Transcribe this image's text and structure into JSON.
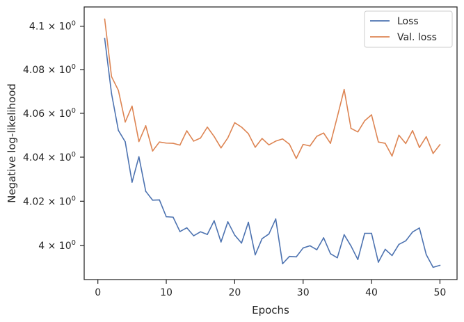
{
  "chart_data": {
    "type": "line",
    "title": "",
    "xlabel": "Epochs",
    "ylabel": "Negative log-likelihood",
    "yscale": "log",
    "xlim": [
      -2,
      52.5
    ],
    "ylim": [
      3.9847,
      4.1089
    ],
    "x_ticks": [
      0,
      10,
      20,
      30,
      40,
      50
    ],
    "y_ticks": [
      {
        "value": 4.0,
        "label": "4 × 10^0"
      },
      {
        "value": 4.02,
        "label": "4.02 × 10^0"
      },
      {
        "value": 4.04,
        "label": "4.04 × 10^0"
      },
      {
        "value": 4.06,
        "label": "4.06 × 10^0"
      },
      {
        "value": 4.08,
        "label": "4.08 × 10^0"
      },
      {
        "value": 4.1,
        "label": "4.1 × 10^0"
      }
    ],
    "grid": false,
    "legend_position": "upper right",
    "x": [
      1,
      2,
      3,
      4,
      5,
      6,
      7,
      8,
      9,
      10,
      11,
      12,
      13,
      14,
      15,
      16,
      17,
      18,
      19,
      20,
      21,
      22,
      23,
      24,
      25,
      26,
      27,
      28,
      29,
      30,
      31,
      32,
      33,
      34,
      35,
      36,
      37,
      38,
      39,
      40,
      41,
      42,
      43,
      44,
      45,
      46,
      47,
      48,
      49,
      50
    ],
    "series": [
      {
        "name": "Loss",
        "color": "#4c72b0",
        "values": [
          4.0943,
          4.069,
          4.0522,
          4.047,
          4.0286,
          4.0402,
          4.0245,
          4.0205,
          4.0206,
          4.013,
          4.0128,
          4.0063,
          4.008,
          4.0044,
          4.0062,
          4.005,
          4.0112,
          4.0016,
          4.0107,
          4.0047,
          4.0011,
          4.0105,
          3.9958,
          4.0031,
          4.0052,
          4.012,
          3.9918,
          3.9951,
          3.9949,
          3.9989,
          3.9999,
          3.9981,
          4.0035,
          3.9963,
          3.9945,
          4.0049,
          3.9998,
          3.9937,
          4.0055,
          4.0055,
          3.9925,
          3.9983,
          3.9955,
          4.0005,
          4.0021,
          4.0061,
          4.0079,
          3.9959,
          3.9902,
          3.9911
        ]
      },
      {
        "name": "Val. loss",
        "color": "#dd8452",
        "values": [
          4.1033,
          4.0768,
          4.0705,
          4.056,
          4.0633,
          4.0471,
          4.0543,
          4.0428,
          4.0469,
          4.0464,
          4.0463,
          4.0455,
          4.052,
          4.0473,
          4.0487,
          4.0537,
          4.0494,
          4.0442,
          4.0488,
          4.0557,
          4.0537,
          4.0507,
          4.0445,
          4.0485,
          4.0456,
          4.0473,
          4.0483,
          4.0459,
          4.0394,
          4.0458,
          4.0451,
          4.0495,
          4.051,
          4.0463,
          4.0584,
          4.0709,
          4.0531,
          4.0515,
          4.0566,
          4.0593,
          4.0469,
          4.0463,
          4.0405,
          4.05,
          4.0462,
          4.0521,
          4.0444,
          4.0493,
          4.0417,
          4.0457
        ]
      }
    ]
  }
}
